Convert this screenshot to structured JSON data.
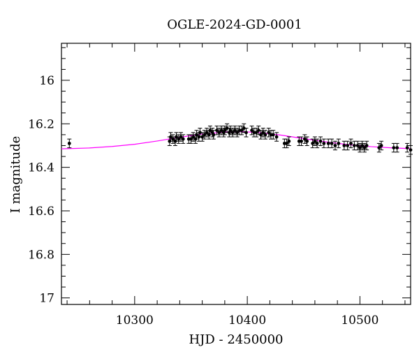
{
  "chart_data": {
    "type": "scatter",
    "title": "OGLE-2024-GD-0001",
    "xlabel": "HJD - 2450000",
    "ylabel": "I magnitude",
    "xlim": [
      10235,
      10545
    ],
    "ylim": [
      17.03,
      15.83
    ],
    "y_inverted": true,
    "x_ticks": [
      10300,
      10400,
      10500
    ],
    "x_tick_labels": [
      "10300",
      "10400",
      "10500"
    ],
    "y_ticks": [
      16,
      16.2,
      16.4,
      16.6,
      16.8,
      17
    ],
    "y_tick_labels": [
      "16",
      "16.2",
      "16.4",
      "16.6",
      "16.8",
      "17"
    ],
    "grid": false,
    "colors": {
      "model": "#ff00ff",
      "points": "#000000"
    },
    "series": [
      {
        "kind": "points_with_errorbars",
        "points": [
          [
            10242,
            16.29,
            0.02
          ],
          [
            10331,
            16.28,
            0.02
          ],
          [
            10332,
            16.26,
            0.02
          ],
          [
            10334,
            16.27,
            0.02
          ],
          [
            10336,
            16.28,
            0.02
          ],
          [
            10337,
            16.26,
            0.02
          ],
          [
            10339,
            16.27,
            0.02
          ],
          [
            10341,
            16.26,
            0.02
          ],
          [
            10343,
            16.27,
            0.02
          ],
          [
            10348,
            16.27,
            0.02
          ],
          [
            10350,
            16.27,
            0.02
          ],
          [
            10352,
            16.26,
            0.02
          ],
          [
            10354,
            16.27,
            0.02
          ],
          [
            10355,
            16.25,
            0.02
          ],
          [
            10357,
            16.26,
            0.02
          ],
          [
            10358,
            16.24,
            0.02
          ],
          [
            10360,
            16.26,
            0.02
          ],
          [
            10362,
            16.25,
            0.02
          ],
          [
            10364,
            16.24,
            0.02
          ],
          [
            10366,
            16.25,
            0.02
          ],
          [
            10367,
            16.23,
            0.02
          ],
          [
            10369,
            16.24,
            0.02
          ],
          [
            10370,
            16.25,
            0.02
          ],
          [
            10373,
            16.23,
            0.02
          ],
          [
            10375,
            16.24,
            0.02
          ],
          [
            10377,
            16.23,
            0.02
          ],
          [
            10379,
            16.24,
            0.02
          ],
          [
            10380,
            16.23,
            0.02
          ],
          [
            10382,
            16.22,
            0.02
          ],
          [
            10384,
            16.24,
            0.02
          ],
          [
            10385,
            16.23,
            0.02
          ],
          [
            10387,
            16.24,
            0.02
          ],
          [
            10389,
            16.23,
            0.02
          ],
          [
            10391,
            16.24,
            0.02
          ],
          [
            10393,
            16.23,
            0.02
          ],
          [
            10395,
            16.23,
            0.02
          ],
          [
            10397,
            16.22,
            0.02
          ],
          [
            10399,
            16.24,
            0.02
          ],
          [
            10404,
            16.23,
            0.02
          ],
          [
            10406,
            16.24,
            0.02
          ],
          [
            10408,
            16.24,
            0.02
          ],
          [
            10410,
            16.23,
            0.02
          ],
          [
            10412,
            16.25,
            0.02
          ],
          [
            10414,
            16.24,
            0.02
          ],
          [
            10416,
            16.25,
            0.02
          ],
          [
            10419,
            16.24,
            0.02
          ],
          [
            10421,
            16.25,
            0.02
          ],
          [
            10423,
            16.25,
            0.02
          ],
          [
            10426,
            16.26,
            0.02
          ],
          [
            10433,
            16.29,
            0.02
          ],
          [
            10435,
            16.29,
            0.02
          ],
          [
            10437,
            16.28,
            0.02
          ],
          [
            10446,
            16.28,
            0.02
          ],
          [
            10448,
            16.28,
            0.02
          ],
          [
            10451,
            16.27,
            0.02
          ],
          [
            10453,
            16.28,
            0.02
          ],
          [
            10458,
            16.29,
            0.02
          ],
          [
            10460,
            16.28,
            0.02
          ],
          [
            10462,
            16.29,
            0.02
          ],
          [
            10465,
            16.28,
            0.02
          ],
          [
            10468,
            16.29,
            0.02
          ],
          [
            10472,
            16.29,
            0.02
          ],
          [
            10475,
            16.29,
            0.02
          ],
          [
            10478,
            16.3,
            0.02
          ],
          [
            10481,
            16.29,
            0.02
          ],
          [
            10486,
            16.3,
            0.02
          ],
          [
            10489,
            16.3,
            0.02
          ],
          [
            10492,
            16.29,
            0.02
          ],
          [
            10495,
            16.3,
            0.02
          ],
          [
            10498,
            16.3,
            0.02
          ],
          [
            10500,
            16.31,
            0.02
          ],
          [
            10502,
            16.3,
            0.02
          ],
          [
            10504,
            16.31,
            0.02
          ],
          [
            10506,
            16.3,
            0.02
          ],
          [
            10517,
            16.31,
            0.02
          ],
          [
            10519,
            16.3,
            0.02
          ],
          [
            10530,
            16.31,
            0.02
          ],
          [
            10533,
            16.31,
            0.02
          ],
          [
            10542,
            16.31,
            0.02
          ],
          [
            10545,
            16.32,
            0.02
          ]
        ]
      },
      {
        "kind": "model_curve",
        "curve": [
          [
            10235,
            16.315
          ],
          [
            10260,
            16.311
          ],
          [
            10280,
            16.304
          ],
          [
            10300,
            16.294
          ],
          [
            10320,
            16.279
          ],
          [
            10340,
            16.262
          ],
          [
            10360,
            16.247
          ],
          [
            10380,
            16.238
          ],
          [
            10395,
            16.236
          ],
          [
            10410,
            16.24
          ],
          [
            10430,
            16.252
          ],
          [
            10450,
            16.268
          ],
          [
            10470,
            16.283
          ],
          [
            10490,
            16.296
          ],
          [
            10510,
            16.305
          ],
          [
            10530,
            16.311
          ],
          [
            10545,
            16.314
          ]
        ]
      }
    ]
  }
}
